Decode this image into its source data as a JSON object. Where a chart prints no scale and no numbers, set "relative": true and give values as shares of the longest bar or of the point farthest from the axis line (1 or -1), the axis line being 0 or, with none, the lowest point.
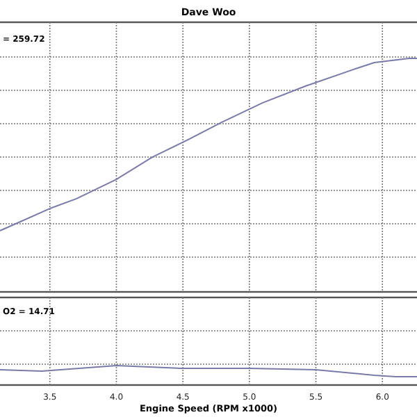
{
  "chart_data": [
    {
      "type": "line",
      "title": "Dave Woo",
      "annotations": [
        "= 259.72"
      ],
      "relative": true,
      "grid": true,
      "tick_labels": false,
      "xlim": [
        3.125,
        6.26
      ],
      "xticks": [
        3.5,
        4.0,
        4.5,
        5.0,
        5.5,
        6.0
      ],
      "series": [
        {
          "color": "#7a7aa8",
          "x": [
            3.125,
            3.5,
            3.7,
            4.0,
            4.27,
            4.55,
            4.79,
            5.1,
            5.42,
            5.78,
            5.94,
            6.2,
            6.26
          ],
          "values": [
            0.262,
            0.357,
            0.399,
            0.482,
            0.577,
            0.655,
            0.726,
            0.81,
            0.881,
            0.952,
            0.982,
            1,
            1
          ]
        }
      ]
    },
    {
      "type": "line",
      "xlabel": "Engine Speed (RPM x1000)",
      "annotations": [
        "O2 = 14.71"
      ],
      "relative": true,
      "grid": true,
      "tick_labels": "x",
      "xlim": [
        3.125,
        6.26
      ],
      "xticks": [
        3.5,
        {
          "value": 4,
          "label": "4.0"
        },
        4.5,
        {
          "value": 5,
          "label": "5.0"
        },
        5.5,
        {
          "value": 6,
          "label": "6.0"
        }
      ],
      "series": [
        {
          "color": "#7a7aa8",
          "x": [
            3.125,
            3.44,
            4.0,
            4.48,
            5.0,
            5.5,
            5.94,
            6.1,
            6.26
          ],
          "values": [
            0.79,
            0.71,
            1,
            0.86,
            0.86,
            0.79,
            0.5,
            0.43,
            0.43
          ]
        }
      ]
    }
  ]
}
